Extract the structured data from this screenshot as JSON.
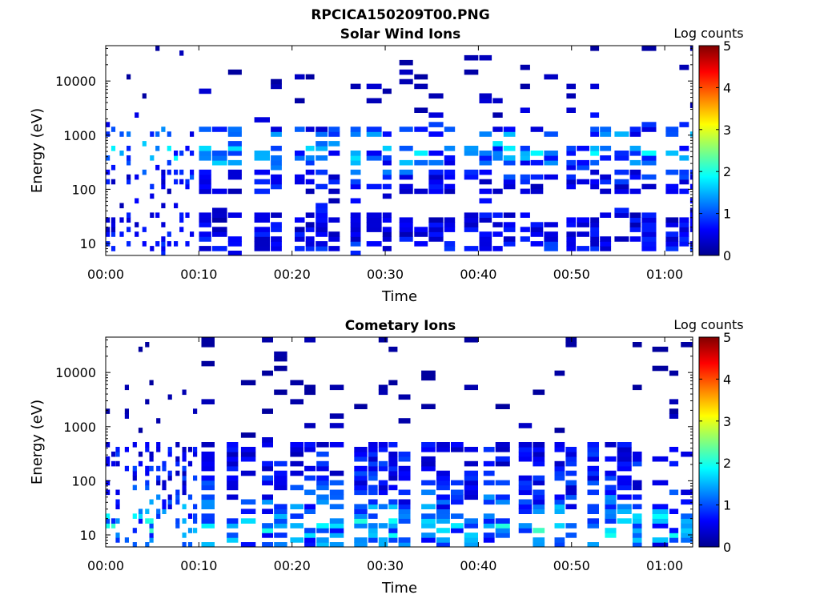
{
  "figure_title": "RPCICA150209T00.PNG",
  "chart_data": [
    {
      "type": "heatmap",
      "title": "Solar Wind Ions",
      "xlabel": "Time",
      "ylabel": "Energy (eV)",
      "y_scale": "log",
      "ylim": [
        6,
        45000
      ],
      "xlim_minutes": [
        0,
        63
      ],
      "x_ticks": [
        {
          "minute": 0,
          "label": "00:00"
        },
        {
          "minute": 10,
          "label": "00:10"
        },
        {
          "minute": 20,
          "label": "00:20"
        },
        {
          "minute": 30,
          "label": "00:30"
        },
        {
          "minute": 40,
          "label": "00:40"
        },
        {
          "minute": 50,
          "label": "00:50"
        },
        {
          "minute": 60,
          "label": "01:00"
        }
      ],
      "y_ticks": [
        {
          "value": 10,
          "label": "10"
        },
        {
          "value": 100,
          "label": "100"
        },
        {
          "value": 1000,
          "label": "1000"
        },
        {
          "value": 10000,
          "label": "10000"
        }
      ],
      "colorbar": {
        "label": "Log counts",
        "range": [
          0,
          5
        ],
        "ticks": [
          "0",
          "1",
          "2",
          "3",
          "4",
          "5"
        ],
        "colormap": "jet"
      },
      "colored_log_count_profile": [
        {
          "energy_eV": 10,
          "log_count": 0.8
        },
        {
          "energy_eV": 20,
          "log_count": 0.6
        },
        {
          "energy_eV": 120,
          "log_count": 0.7
        },
        {
          "energy_eV": 180,
          "log_count": 0.9
        },
        {
          "energy_eV": 400,
          "log_count": 1.6
        },
        {
          "energy_eV": 1000,
          "log_count": 1.3
        },
        {
          "energy_eV": 3000,
          "log_count": 0.4
        },
        {
          "energy_eV": 20000,
          "log_count": 0.3
        }
      ],
      "grid": false
    },
    {
      "type": "heatmap",
      "title": "Cometary Ions",
      "xlabel": "Time",
      "ylabel": "Energy (eV)",
      "y_scale": "log",
      "ylim": [
        6,
        45000
      ],
      "xlim_minutes": [
        0,
        63
      ],
      "x_ticks": [
        {
          "minute": 0,
          "label": "00:00"
        },
        {
          "minute": 10,
          "label": "00:10"
        },
        {
          "minute": 20,
          "label": "00:20"
        },
        {
          "minute": 30,
          "label": "00:30"
        },
        {
          "minute": 40,
          "label": "00:40"
        },
        {
          "minute": 50,
          "label": "00:50"
        },
        {
          "minute": 60,
          "label": "01:00"
        }
      ],
      "y_ticks": [
        {
          "value": 10,
          "label": "10"
        },
        {
          "value": 100,
          "label": "100"
        },
        {
          "value": 1000,
          "label": "1000"
        },
        {
          "value": 10000,
          "label": "10000"
        }
      ],
      "colorbar": {
        "label": "Log counts",
        "range": [
          0,
          5
        ],
        "ticks": [
          "0",
          "1",
          "2",
          "3",
          "4",
          "5"
        ],
        "colormap": "jet"
      },
      "colored_log_count_profile": [
        {
          "energy_eV": 8,
          "log_count": 1.3
        },
        {
          "energy_eV": 12,
          "log_count": 1.9
        },
        {
          "energy_eV": 20,
          "log_count": 1.6
        },
        {
          "energy_eV": 40,
          "log_count": 1.2
        },
        {
          "energy_eV": 80,
          "log_count": 0.9
        },
        {
          "energy_eV": 150,
          "log_count": 0.8
        },
        {
          "energy_eV": 300,
          "log_count": 0.8
        },
        {
          "energy_eV": 1000,
          "log_count": 0.3
        },
        {
          "energy_eV": 5000,
          "log_count": 0.2
        }
      ],
      "grid": false
    }
  ]
}
